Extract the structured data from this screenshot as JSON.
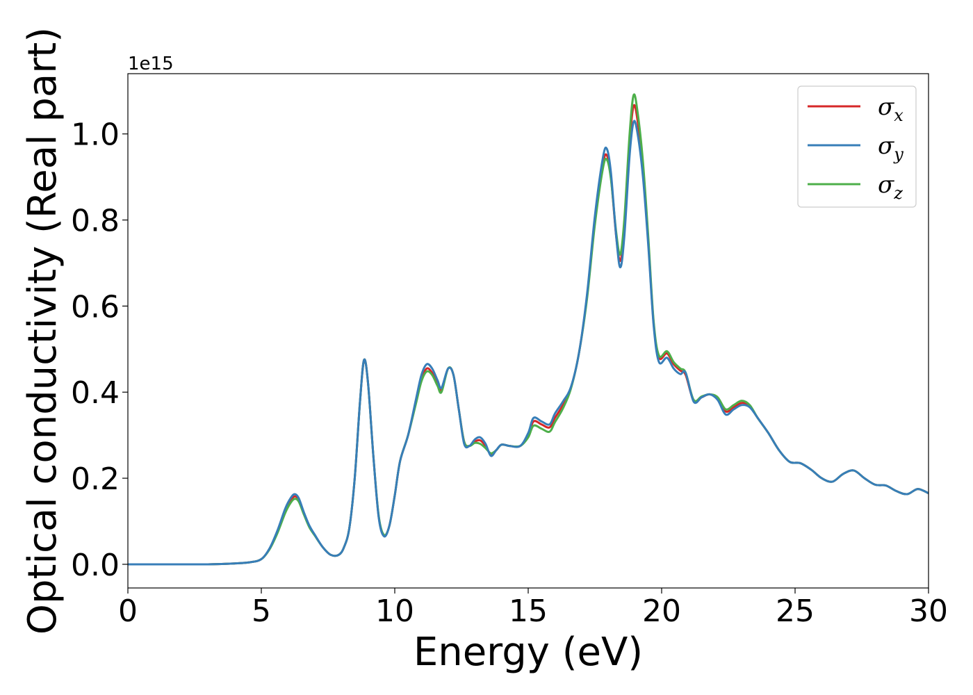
{
  "chart_data": {
    "type": "line",
    "xlabel": "Energy (eV)",
    "ylabel": "Optical conductivity (Real part)",
    "y_offset_label": "1e15",
    "xlim": [
      0,
      30
    ],
    "ylim": [
      -0.055,
      1.14
    ],
    "xticks": [
      0,
      5,
      10,
      15,
      20,
      25,
      30
    ],
    "xtick_labels": [
      "0",
      "5",
      "10",
      "15",
      "20",
      "25",
      "30"
    ],
    "yticks": [
      0.0,
      0.2,
      0.4,
      0.6,
      0.8,
      1.0
    ],
    "ytick_labels": [
      "0.0",
      "0.2",
      "0.4",
      "0.6",
      "0.8",
      "1.0"
    ],
    "grid": false,
    "legend_position": "upper-right",
    "series": [
      {
        "name": "σx",
        "symbol": "σ",
        "subscript": "x",
        "color": "#d62728",
        "points": [
          [
            0,
            0.0
          ],
          [
            1,
            0.0
          ],
          [
            2,
            0.0
          ],
          [
            3,
            0.0
          ],
          [
            4,
            0.002
          ],
          [
            4.6,
            0.005
          ],
          [
            5,
            0.012
          ],
          [
            5.3,
            0.035
          ],
          [
            5.6,
            0.075
          ],
          [
            5.9,
            0.125
          ],
          [
            6.1,
            0.148
          ],
          [
            6.25,
            0.158
          ],
          [
            6.4,
            0.15
          ],
          [
            6.6,
            0.118
          ],
          [
            6.8,
            0.088
          ],
          [
            7.0,
            0.068
          ],
          [
            7.3,
            0.04
          ],
          [
            7.6,
            0.022
          ],
          [
            7.9,
            0.022
          ],
          [
            8.1,
            0.04
          ],
          [
            8.3,
            0.085
          ],
          [
            8.5,
            0.2
          ],
          [
            8.7,
            0.38
          ],
          [
            8.85,
            0.475
          ],
          [
            9.0,
            0.42
          ],
          [
            9.2,
            0.25
          ],
          [
            9.4,
            0.11
          ],
          [
            9.6,
            0.067
          ],
          [
            9.8,
            0.09
          ],
          [
            10.0,
            0.16
          ],
          [
            10.2,
            0.24
          ],
          [
            10.5,
            0.3
          ],
          [
            10.8,
            0.38
          ],
          [
            11.0,
            0.43
          ],
          [
            11.2,
            0.455
          ],
          [
            11.4,
            0.445
          ],
          [
            11.6,
            0.42
          ],
          [
            11.75,
            0.405
          ],
          [
            12.0,
            0.455
          ],
          [
            12.2,
            0.44
          ],
          [
            12.4,
            0.36
          ],
          [
            12.6,
            0.285
          ],
          [
            12.8,
            0.275
          ],
          [
            13.0,
            0.285
          ],
          [
            13.2,
            0.288
          ],
          [
            13.4,
            0.275
          ],
          [
            13.6,
            0.255
          ],
          [
            13.8,
            0.265
          ],
          [
            14.0,
            0.278
          ],
          [
            14.3,
            0.275
          ],
          [
            14.7,
            0.275
          ],
          [
            15.0,
            0.3
          ],
          [
            15.2,
            0.332
          ],
          [
            15.5,
            0.325
          ],
          [
            15.8,
            0.318
          ],
          [
            16.0,
            0.34
          ],
          [
            16.3,
            0.37
          ],
          [
            16.6,
            0.41
          ],
          [
            16.9,
            0.49
          ],
          [
            17.2,
            0.62
          ],
          [
            17.5,
            0.8
          ],
          [
            17.8,
            0.93
          ],
          [
            17.95,
            0.95
          ],
          [
            18.1,
            0.9
          ],
          [
            18.3,
            0.76
          ],
          [
            18.45,
            0.705
          ],
          [
            18.6,
            0.78
          ],
          [
            18.8,
            0.98
          ],
          [
            18.95,
            1.065
          ],
          [
            19.1,
            1.03
          ],
          [
            19.3,
            0.92
          ],
          [
            19.5,
            0.75
          ],
          [
            19.7,
            0.56
          ],
          [
            19.9,
            0.48
          ],
          [
            20.2,
            0.49
          ],
          [
            20.45,
            0.465
          ],
          [
            20.7,
            0.45
          ],
          [
            20.9,
            0.44
          ],
          [
            21.2,
            0.38
          ],
          [
            21.5,
            0.388
          ],
          [
            21.8,
            0.395
          ],
          [
            22.1,
            0.385
          ],
          [
            22.4,
            0.355
          ],
          [
            22.7,
            0.365
          ],
          [
            23.0,
            0.375
          ],
          [
            23.3,
            0.368
          ],
          [
            23.6,
            0.34
          ],
          [
            24.0,
            0.305
          ],
          [
            24.4,
            0.265
          ],
          [
            24.8,
            0.238
          ],
          [
            25.2,
            0.235
          ],
          [
            25.6,
            0.22
          ],
          [
            26.0,
            0.2
          ],
          [
            26.4,
            0.192
          ],
          [
            26.8,
            0.21
          ],
          [
            27.2,
            0.218
          ],
          [
            27.6,
            0.2
          ],
          [
            28.0,
            0.185
          ],
          [
            28.4,
            0.183
          ],
          [
            28.8,
            0.17
          ],
          [
            29.2,
            0.163
          ],
          [
            29.6,
            0.175
          ],
          [
            30.0,
            0.165
          ]
        ]
      },
      {
        "name": "σy",
        "symbol": "σ",
        "subscript": "y",
        "color": "#377eb8",
        "points": [
          [
            0,
            0.0
          ],
          [
            1,
            0.0
          ],
          [
            2,
            0.0
          ],
          [
            3,
            0.0
          ],
          [
            4,
            0.002
          ],
          [
            4.6,
            0.005
          ],
          [
            5,
            0.012
          ],
          [
            5.3,
            0.036
          ],
          [
            5.6,
            0.078
          ],
          [
            5.9,
            0.13
          ],
          [
            6.1,
            0.154
          ],
          [
            6.25,
            0.163
          ],
          [
            6.4,
            0.154
          ],
          [
            6.6,
            0.12
          ],
          [
            6.8,
            0.09
          ],
          [
            7.0,
            0.069
          ],
          [
            7.3,
            0.04
          ],
          [
            7.6,
            0.022
          ],
          [
            7.9,
            0.022
          ],
          [
            8.1,
            0.04
          ],
          [
            8.3,
            0.085
          ],
          [
            8.5,
            0.2
          ],
          [
            8.7,
            0.38
          ],
          [
            8.85,
            0.475
          ],
          [
            9.0,
            0.42
          ],
          [
            9.2,
            0.25
          ],
          [
            9.4,
            0.108
          ],
          [
            9.6,
            0.065
          ],
          [
            9.8,
            0.09
          ],
          [
            10.0,
            0.16
          ],
          [
            10.2,
            0.24
          ],
          [
            10.5,
            0.3
          ],
          [
            10.8,
            0.385
          ],
          [
            11.0,
            0.44
          ],
          [
            11.2,
            0.465
          ],
          [
            11.4,
            0.455
          ],
          [
            11.6,
            0.428
          ],
          [
            11.75,
            0.41
          ],
          [
            12.0,
            0.455
          ],
          [
            12.2,
            0.44
          ],
          [
            12.4,
            0.36
          ],
          [
            12.6,
            0.28
          ],
          [
            12.8,
            0.275
          ],
          [
            13.0,
            0.29
          ],
          [
            13.2,
            0.295
          ],
          [
            13.4,
            0.28
          ],
          [
            13.6,
            0.252
          ],
          [
            13.8,
            0.265
          ],
          [
            14.0,
            0.278
          ],
          [
            14.3,
            0.275
          ],
          [
            14.7,
            0.275
          ],
          [
            15.0,
            0.305
          ],
          [
            15.2,
            0.34
          ],
          [
            15.5,
            0.332
          ],
          [
            15.8,
            0.325
          ],
          [
            16.0,
            0.35
          ],
          [
            16.3,
            0.378
          ],
          [
            16.6,
            0.412
          ],
          [
            16.9,
            0.49
          ],
          [
            17.2,
            0.625
          ],
          [
            17.5,
            0.81
          ],
          [
            17.8,
            0.945
          ],
          [
            17.95,
            0.965
          ],
          [
            18.1,
            0.91
          ],
          [
            18.3,
            0.76
          ],
          [
            18.45,
            0.69
          ],
          [
            18.6,
            0.76
          ],
          [
            18.8,
            0.95
          ],
          [
            18.95,
            1.028
          ],
          [
            19.1,
            1.0
          ],
          [
            19.3,
            0.9
          ],
          [
            19.5,
            0.74
          ],
          [
            19.7,
            0.555
          ],
          [
            19.9,
            0.47
          ],
          [
            20.2,
            0.48
          ],
          [
            20.45,
            0.455
          ],
          [
            20.7,
            0.442
          ],
          [
            20.9,
            0.445
          ],
          [
            21.2,
            0.378
          ],
          [
            21.5,
            0.388
          ],
          [
            21.8,
            0.395
          ],
          [
            22.1,
            0.382
          ],
          [
            22.4,
            0.348
          ],
          [
            22.7,
            0.36
          ],
          [
            23.0,
            0.37
          ],
          [
            23.3,
            0.365
          ],
          [
            23.6,
            0.34
          ],
          [
            24.0,
            0.305
          ],
          [
            24.4,
            0.265
          ],
          [
            24.8,
            0.238
          ],
          [
            25.2,
            0.235
          ],
          [
            25.6,
            0.22
          ],
          [
            26.0,
            0.2
          ],
          [
            26.4,
            0.192
          ],
          [
            26.8,
            0.21
          ],
          [
            27.2,
            0.218
          ],
          [
            27.6,
            0.2
          ],
          [
            28.0,
            0.185
          ],
          [
            28.4,
            0.183
          ],
          [
            28.8,
            0.17
          ],
          [
            29.2,
            0.163
          ],
          [
            29.6,
            0.175
          ],
          [
            30.0,
            0.165
          ]
        ]
      },
      {
        "name": "σz",
        "symbol": "σ",
        "subscript": "z",
        "color": "#4daf4a",
        "points": [
          [
            0,
            0.0
          ],
          [
            1,
            0.0
          ],
          [
            2,
            0.0
          ],
          [
            3,
            0.0
          ],
          [
            4,
            0.002
          ],
          [
            4.6,
            0.005
          ],
          [
            5,
            0.012
          ],
          [
            5.3,
            0.034
          ],
          [
            5.6,
            0.072
          ],
          [
            5.9,
            0.12
          ],
          [
            6.1,
            0.143
          ],
          [
            6.25,
            0.152
          ],
          [
            6.4,
            0.146
          ],
          [
            6.6,
            0.115
          ],
          [
            6.8,
            0.086
          ],
          [
            7.0,
            0.067
          ],
          [
            7.3,
            0.04
          ],
          [
            7.6,
            0.022
          ],
          [
            7.9,
            0.022
          ],
          [
            8.1,
            0.04
          ],
          [
            8.3,
            0.085
          ],
          [
            8.5,
            0.2
          ],
          [
            8.7,
            0.38
          ],
          [
            8.85,
            0.475
          ],
          [
            9.0,
            0.42
          ],
          [
            9.2,
            0.25
          ],
          [
            9.4,
            0.112
          ],
          [
            9.6,
            0.068
          ],
          [
            9.8,
            0.09
          ],
          [
            10.0,
            0.16
          ],
          [
            10.2,
            0.24
          ],
          [
            10.5,
            0.3
          ],
          [
            10.8,
            0.375
          ],
          [
            11.0,
            0.425
          ],
          [
            11.2,
            0.448
          ],
          [
            11.4,
            0.44
          ],
          [
            11.6,
            0.415
          ],
          [
            11.75,
            0.4
          ],
          [
            12.0,
            0.455
          ],
          [
            12.2,
            0.44
          ],
          [
            12.4,
            0.36
          ],
          [
            12.6,
            0.285
          ],
          [
            12.8,
            0.275
          ],
          [
            13.0,
            0.282
          ],
          [
            13.2,
            0.28
          ],
          [
            13.4,
            0.27
          ],
          [
            13.6,
            0.258
          ],
          [
            13.8,
            0.265
          ],
          [
            14.0,
            0.278
          ],
          [
            14.3,
            0.275
          ],
          [
            14.7,
            0.275
          ],
          [
            15.0,
            0.295
          ],
          [
            15.2,
            0.322
          ],
          [
            15.5,
            0.315
          ],
          [
            15.8,
            0.308
          ],
          [
            16.0,
            0.33
          ],
          [
            16.3,
            0.362
          ],
          [
            16.6,
            0.408
          ],
          [
            16.9,
            0.49
          ],
          [
            17.2,
            0.615
          ],
          [
            17.5,
            0.79
          ],
          [
            17.8,
            0.92
          ],
          [
            17.95,
            0.94
          ],
          [
            18.1,
            0.895
          ],
          [
            18.3,
            0.77
          ],
          [
            18.45,
            0.72
          ],
          [
            18.6,
            0.8
          ],
          [
            18.8,
            1.0
          ],
          [
            18.95,
            1.09
          ],
          [
            19.1,
            1.05
          ],
          [
            19.3,
            0.935
          ],
          [
            19.5,
            0.76
          ],
          [
            19.7,
            0.565
          ],
          [
            19.9,
            0.485
          ],
          [
            20.2,
            0.495
          ],
          [
            20.45,
            0.47
          ],
          [
            20.7,
            0.455
          ],
          [
            20.9,
            0.445
          ],
          [
            21.2,
            0.382
          ],
          [
            21.5,
            0.39
          ],
          [
            21.8,
            0.395
          ],
          [
            22.1,
            0.388
          ],
          [
            22.4,
            0.36
          ],
          [
            22.7,
            0.37
          ],
          [
            23.0,
            0.38
          ],
          [
            23.3,
            0.37
          ],
          [
            23.6,
            0.34
          ],
          [
            24.0,
            0.305
          ],
          [
            24.4,
            0.265
          ],
          [
            24.8,
            0.238
          ],
          [
            25.2,
            0.235
          ],
          [
            25.6,
            0.22
          ],
          [
            26.0,
            0.2
          ],
          [
            26.4,
            0.192
          ],
          [
            26.8,
            0.21
          ],
          [
            27.2,
            0.218
          ],
          [
            27.6,
            0.2
          ],
          [
            28.0,
            0.185
          ],
          [
            28.4,
            0.183
          ],
          [
            28.8,
            0.17
          ],
          [
            29.2,
            0.163
          ],
          [
            29.6,
            0.175
          ],
          [
            30.0,
            0.165
          ]
        ]
      }
    ]
  }
}
